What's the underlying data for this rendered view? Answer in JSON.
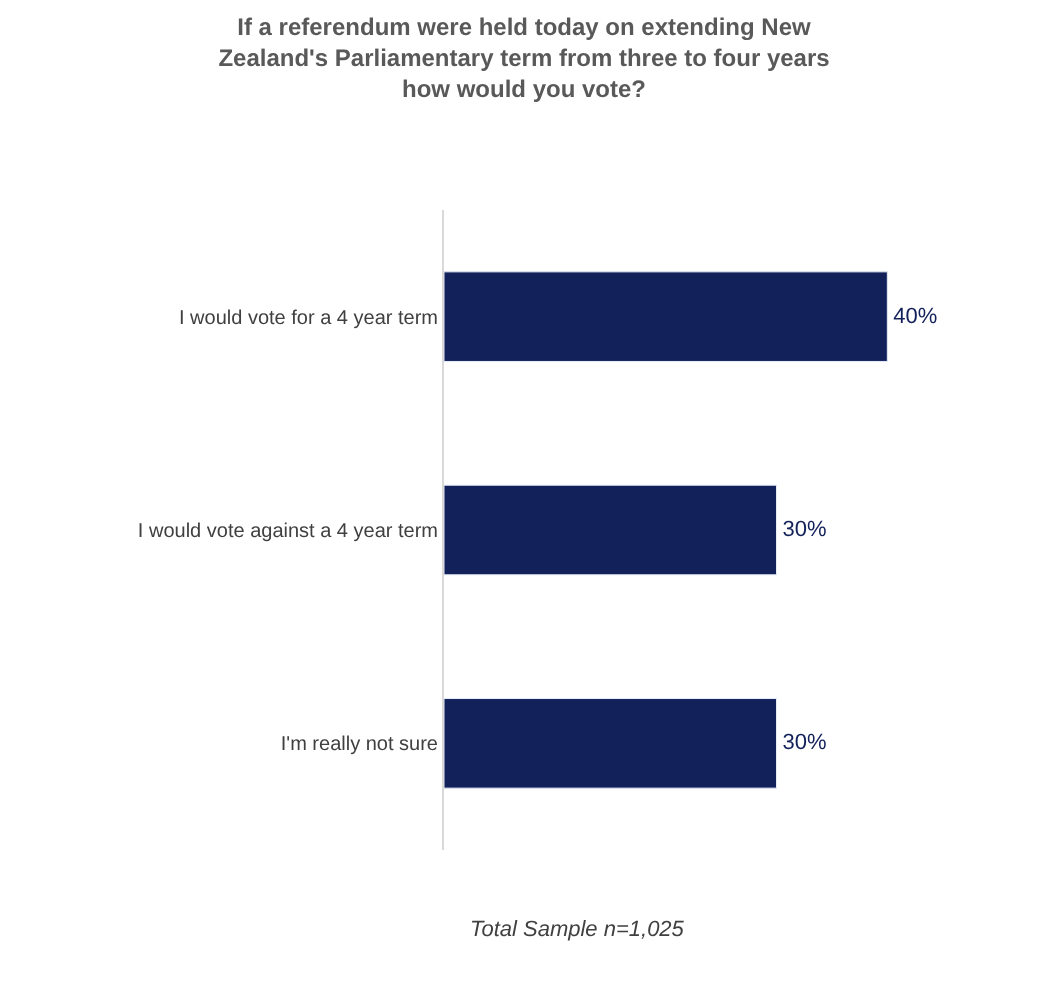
{
  "chart_data": {
    "type": "bar",
    "orientation": "horizontal",
    "title": "If a referendum were held today on extending New Zealand's Parliamentary term from three to four years how would you vote?",
    "categories": [
      "I would vote for a 4 year term",
      "I would vote against a 4 year term",
      "I'm really not sure"
    ],
    "values": [
      40,
      30,
      30
    ],
    "value_labels": [
      "40%",
      "30%",
      "30%"
    ],
    "color": "#13215b",
    "annotations": [
      "Total Sample n=1,025"
    ]
  }
}
